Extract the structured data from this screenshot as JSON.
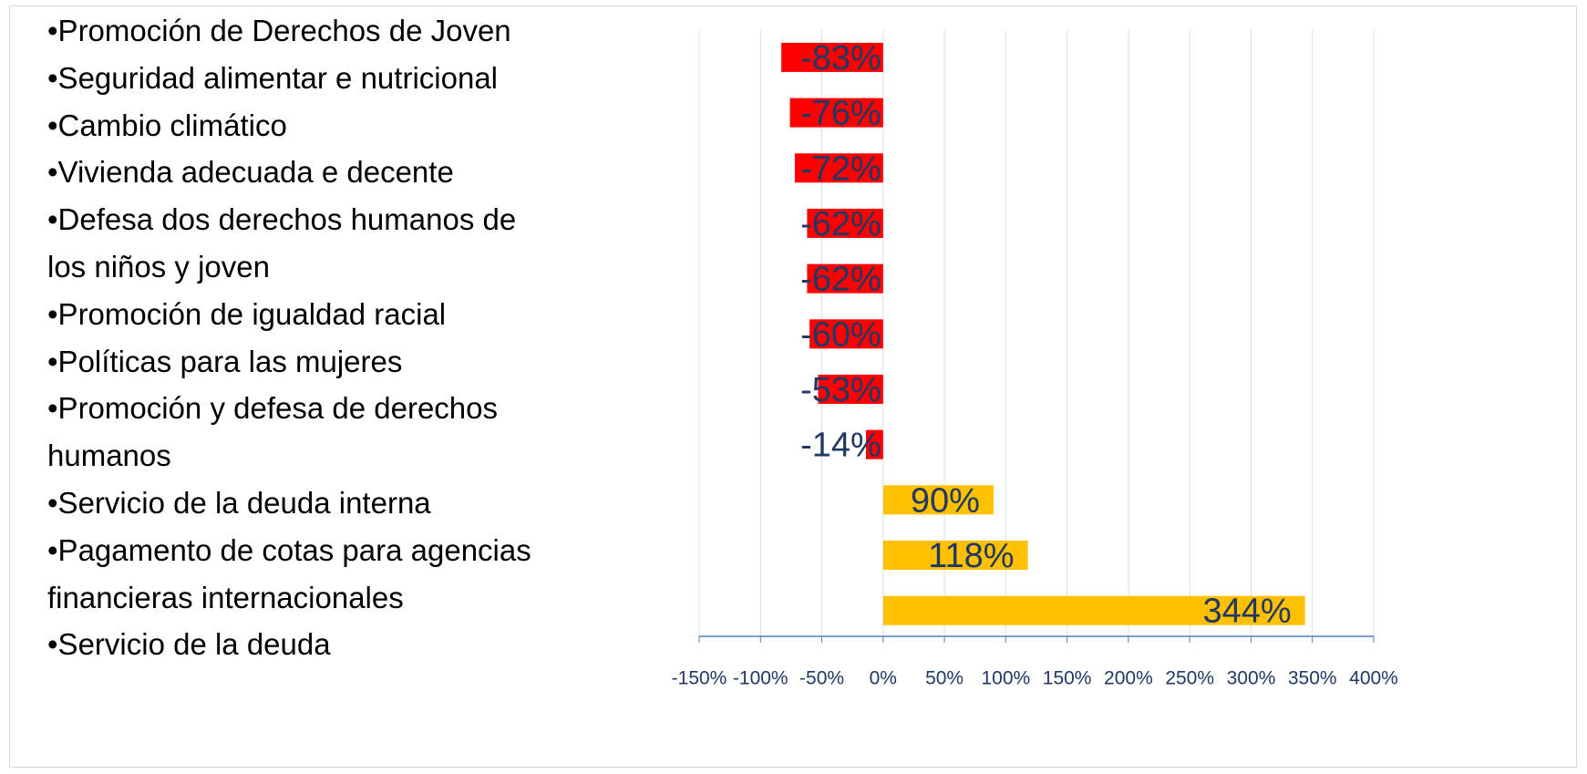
{
  "list": [
    [
      "•Promoción de Derechos de Joven"
    ],
    [
      "•Seguridad alimentar e nutricional"
    ],
    [
      "•Cambio climático"
    ],
    [
      "•Vivienda adecuada e decente"
    ],
    [
      "•Defesa dos derechos humanos de",
      "los niños y joven"
    ],
    [
      "•Promoción de igualdad racial"
    ],
    [
      "•Políticas para las mujeres"
    ],
    [
      "•Promoción y defesa de derechos",
      "humanos"
    ],
    [
      "•Servicio de la deuda interna"
    ],
    [
      "•Pagamento de cotas para agencias",
      "financieras internacionales"
    ],
    [
      "•Servicio de la deuda"
    ]
  ],
  "chart_data": {
    "type": "bar",
    "orientation": "horizontal",
    "values": [
      -83,
      -76,
      -72,
      -62,
      -62,
      -60,
      -53,
      -14,
      90,
      118,
      344
    ],
    "value_labels": [
      "-83%",
      "-76%",
      "-72%",
      "-62%",
      "-62%",
      "-60%",
      "-53%",
      "-14%",
      "90%",
      "118%",
      "344%"
    ],
    "color": "#ffc000",
    "negative_color": "#ff0000",
    "xlim": [
      -150,
      400
    ],
    "xticks": [
      {
        "value": -150,
        "label": "-150%"
      },
      {
        "value": -100,
        "label": "-100%"
      },
      {
        "value": -50,
        "label": "-50%"
      },
      {
        "value": 0,
        "label": "0%"
      },
      {
        "value": 50,
        "label": "50%"
      },
      {
        "value": 100,
        "label": "100%"
      },
      {
        "value": 150,
        "label": "150%"
      },
      {
        "value": 200,
        "label": "200%"
      },
      {
        "value": 250,
        "label": "250%"
      },
      {
        "value": 300,
        "label": "300%"
      },
      {
        "value": 350,
        "label": "350%"
      },
      {
        "value": 400,
        "label": "400%"
      }
    ],
    "grid": true
  }
}
